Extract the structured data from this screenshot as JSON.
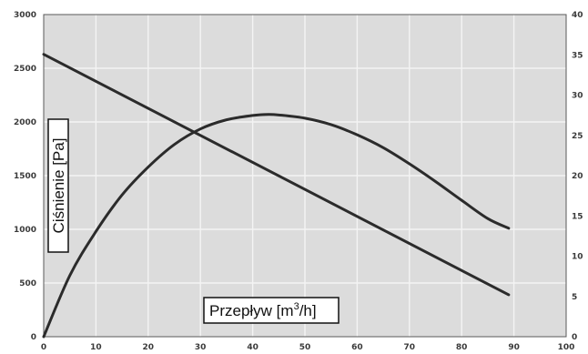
{
  "chart_data": {
    "type": "line",
    "title": "",
    "xlabel": "Przepływ [m³/h]",
    "xlabel_parts": {
      "base": "Przepływ [m",
      "sup": "3",
      "tail": "/h]"
    },
    "ylabel": "Ciśnienie [Pa]",
    "y2label": "",
    "xlim": [
      0,
      100
    ],
    "ylim": [
      0,
      3000
    ],
    "y2lim": [
      0,
      40
    ],
    "x_ticks": [
      0,
      10,
      20,
      30,
      40,
      50,
      60,
      70,
      80,
      90,
      100
    ],
    "y_ticks": [
      0,
      500,
      1000,
      1500,
      2000,
      2500,
      3000
    ],
    "y2_ticks": [
      0,
      5,
      10,
      15,
      20,
      25,
      30,
      35,
      40
    ],
    "grid": true,
    "series": [
      {
        "axis": "left",
        "color": "#2b2b2b",
        "x": [
          0,
          89
        ],
        "y": [
          2630,
          390
        ]
      },
      {
        "axis": "left",
        "color": "#2b2b2b",
        "x": [
          0,
          5,
          10,
          15,
          20,
          25,
          30,
          35,
          40,
          43,
          45,
          50,
          55,
          60,
          65,
          70,
          75,
          80,
          85,
          89
        ],
        "y": [
          0,
          570,
          980,
          1320,
          1580,
          1790,
          1935,
          2020,
          2060,
          2070,
          2065,
          2035,
          1975,
          1880,
          1760,
          1610,
          1445,
          1270,
          1100,
          1010
        ]
      }
    ]
  },
  "colors": {
    "plot_background": "#dcdcdc",
    "grid": "#f4f4f4",
    "line": "#2b2b2b",
    "axis": "#5a5a5a"
  }
}
